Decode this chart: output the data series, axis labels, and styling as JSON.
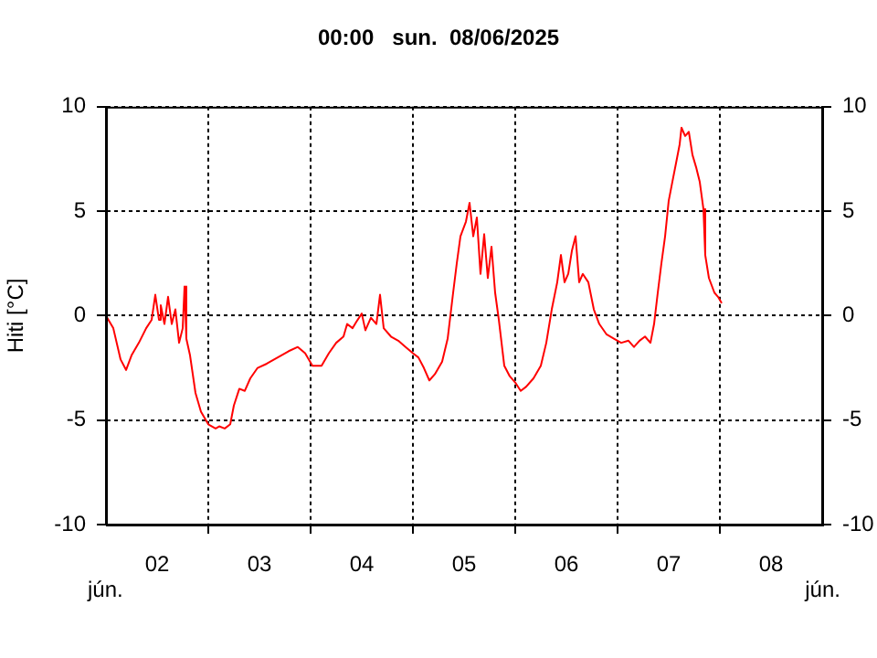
{
  "chart_data": {
    "type": "line",
    "title": "00:00   sun.  08/06/2025",
    "ylabel": "Hiti [°C]",
    "annotations": [
      "jún.",
      "jún."
    ],
    "xlim": [
      "2025-06-02T00:00",
      "2025-06-09T00:00"
    ],
    "xticks": [
      {
        "value": "2025-06-02T12:00",
        "label": "02"
      },
      {
        "value": "2025-06-03T00:00",
        "label": null
      },
      {
        "value": "2025-06-03T12:00",
        "label": "03"
      },
      {
        "value": "2025-06-04T00:00",
        "label": null
      },
      {
        "value": "2025-06-04T12:00",
        "label": "04"
      },
      {
        "value": "2025-06-05T00:00",
        "label": null
      },
      {
        "value": "2025-06-05T12:00",
        "label": "05"
      },
      {
        "value": "2025-06-06T00:00",
        "label": null
      },
      {
        "value": "2025-06-06T12:00",
        "label": "06"
      },
      {
        "value": "2025-06-07T00:00",
        "label": null
      },
      {
        "value": "2025-06-07T12:00",
        "label": "07"
      },
      {
        "value": "2025-06-08T00:00",
        "label": null
      },
      {
        "value": "2025-06-08T12:00",
        "label": "08"
      }
    ],
    "ylim": [
      -10,
      10
    ],
    "yticks": [
      -10,
      -5,
      0,
      5,
      10
    ],
    "y2lim": [
      -10,
      10
    ],
    "y2ticks": [
      -10,
      -5,
      0,
      5,
      10
    ],
    "grid": true,
    "line_style": "solid",
    "marker": "none",
    "x": [
      "2025-06-02T00:00",
      "2025-06-02T01:43",
      "2025-06-02T03:26",
      "2025-06-02T04:43",
      "2025-06-02T06:00",
      "2025-06-02T07:43",
      "2025-06-02T09:26",
      "2025-06-02T10:43",
      "2025-06-02T11:34",
      "2025-06-02T12:26",
      "2025-06-02T12:51",
      "2025-06-02T13:43",
      "2025-06-02T14:34",
      "2025-06-02T15:26",
      "2025-06-02T16:17",
      "2025-06-02T17:09",
      "2025-06-02T18:00",
      "2025-06-02T18:26",
      "2025-06-02T18:51",
      "2025-06-02T19:43",
      "2025-06-02T21:00",
      "2025-06-02T22:17",
      "2025-06-03T00:00",
      "2025-06-03T01:43",
      "2025-06-03T02:34",
      "2025-06-03T03:51",
      "2025-06-03T05:09",
      "2025-06-03T06:00",
      "2025-06-03T07:17",
      "2025-06-03T08:34",
      "2025-06-03T09:51",
      "2025-06-03T11:34",
      "2025-06-03T13:43",
      "2025-06-03T16:17",
      "2025-06-03T18:51",
      "2025-06-03T21:00",
      "2025-06-03T22:43",
      "2025-06-04T00:26",
      "2025-06-04T02:34",
      "2025-06-04T04:17",
      "2025-06-04T06:00",
      "2025-06-04T07:43",
      "2025-06-04T08:34",
      "2025-06-04T09:51",
      "2025-06-04T10:43",
      "2025-06-04T12:00",
      "2025-06-04T12:51",
      "2025-06-04T14:09",
      "2025-06-04T15:26",
      "2025-06-04T16:17",
      "2025-06-04T17:09",
      "2025-06-04T18:51",
      "2025-06-04T20:34",
      "2025-06-04T22:17",
      "2025-06-05T00:00",
      "2025-06-05T01:17",
      "2025-06-05T02:34",
      "2025-06-05T03:51",
      "2025-06-05T05:09",
      "2025-06-05T06:51",
      "2025-06-05T08:09",
      "2025-06-05T09:26",
      "2025-06-05T10:17",
      "2025-06-05T11:09",
      "2025-06-05T12:26",
      "2025-06-05T13:17",
      "2025-06-05T14:09",
      "2025-06-05T15:00",
      "2025-06-05T15:51",
      "2025-06-05T16:43",
      "2025-06-05T17:34",
      "2025-06-05T18:26",
      "2025-06-05T19:17",
      "2025-06-05T20:09",
      "2025-06-05T21:26",
      "2025-06-05T22:43",
      "2025-06-06T00:00",
      "2025-06-06T01:17",
      "2025-06-06T02:34",
      "2025-06-06T04:17",
      "2025-06-06T06:00",
      "2025-06-06T07:17",
      "2025-06-06T08:34",
      "2025-06-06T09:51",
      "2025-06-06T10:43",
      "2025-06-06T11:34",
      "2025-06-06T12:26",
      "2025-06-06T13:17",
      "2025-06-06T14:09",
      "2025-06-06T15:00",
      "2025-06-06T15:51",
      "2025-06-06T17:09",
      "2025-06-06T18:26",
      "2025-06-06T19:43",
      "2025-06-06T21:26",
      "2025-06-06T23:09",
      "2025-06-07T00:51",
      "2025-06-07T02:34",
      "2025-06-07T03:51",
      "2025-06-07T05:09",
      "2025-06-07T06:26",
      "2025-06-07T07:43",
      "2025-06-07T08:34",
      "2025-06-07T09:26",
      "2025-06-07T10:17",
      "2025-06-07T11:09",
      "2025-06-07T12:00",
      "2025-06-07T12:51",
      "2025-06-07T13:43",
      "2025-06-07T14:34",
      "2025-06-07T15:00",
      "2025-06-07T15:51",
      "2025-06-07T16:43",
      "2025-06-07T17:34",
      "2025-06-07T18:26",
      "2025-06-07T19:17",
      "2025-06-07T20:09",
      "2025-06-07T20:34",
      "2025-06-07T21:26",
      "2025-06-07T22:43",
      "2025-06-07T23:34",
      "2025-06-08T00:26"
    ],
    "series": [
      {
        "color": "#ff0000",
        "axis": "y",
        "values": [
          0,
          -0.6,
          -2.1,
          -2.6,
          -1.9,
          -1.3,
          -0.6,
          -0.2,
          1.0,
          -0.2,
          0.5,
          -0.4,
          0.9,
          -0.4,
          0.3,
          -1.3,
          -0.6,
          1.4,
          -1.1,
          -1.9,
          -3.7,
          -4.6,
          -5.2,
          -5.4,
          -5.3,
          -5.4,
          -5.2,
          -4.3,
          -3.5,
          -3.6,
          -3.0,
          -2.5,
          -2.3,
          -2.0,
          -1.7,
          -1.5,
          -1.8,
          -2.4,
          -2.4,
          -1.8,
          -1.3,
          -1.0,
          -0.4,
          -0.6,
          -0.3,
          0.1,
          -0.7,
          -0.1,
          -0.4,
          1.0,
          -0.6,
          -1.0,
          -1.2,
          -1.5,
          -1.8,
          -2.0,
          -2.5,
          -3.1,
          -2.8,
          -2.2,
          -1.1,
          1.1,
          2.5,
          3.8,
          4.5,
          5.4,
          3.8,
          4.7,
          2.0,
          3.9,
          1.8,
          3.3,
          1.1,
          -0.2,
          -2.4,
          -2.9,
          -3.2,
          -3.6,
          -3.4,
          -3.0,
          -2.4,
          -1.3,
          0.3,
          1.6,
          2.9,
          1.6,
          2.0,
          3.1,
          3.8,
          1.6,
          2.0,
          1.6,
          0.3,
          -0.4,
          -0.9,
          -1.1,
          -1.3,
          -1.2,
          -1.5,
          -1.2,
          -1.0,
          -1.3,
          -0.4,
          1.1,
          2.5,
          3.8,
          5.5,
          6.4,
          7.3,
          8.2,
          9.0,
          8.6,
          8.8,
          7.7,
          7.1,
          6.4,
          5.1,
          2.9,
          1.8,
          1.1,
          0.9,
          0.6
        ]
      }
    ]
  }
}
